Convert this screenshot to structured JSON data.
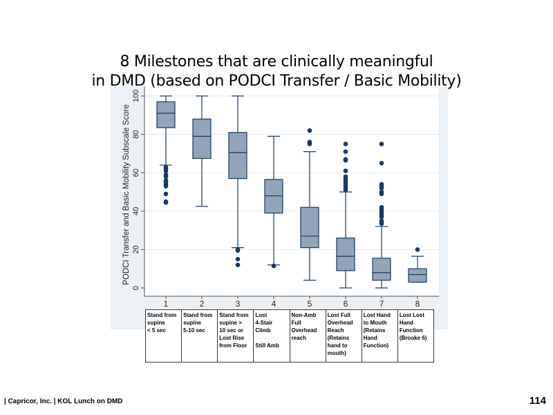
{
  "slide": {
    "title_line1": "8 Milestones that are clinically meaningful",
    "title_line2": "in DMD (based on PODCI Transfer / Basic Mobility)",
    "footer": "| Capricor, Inc. | KOL Lunch on DMD",
    "page_number": "114"
  },
  "milestones": [
    "Stand from\nsupine\n< 5 sec",
    "Stand from\nsupine\n5-10 sec",
    "Stand from\nsupine >\n10 sec or\nLost Rise\nfrom Floor",
    "Lost\n4-Stair\nClimb\n\nStill Amb",
    "Non-Amb\nFull\nOverhead\nreach",
    "Lost Full\nOverhead\nReach\n(Retains\nhand to\nmouth)",
    "Lost Hand\nto Mouth\n(Retains\nHand\nFunction)",
    "Lost Lost\nHand\nFunction\n(Brooke 6)"
  ],
  "colors": {
    "box": "#91a4b8",
    "line": "#1a3a5c",
    "dot": "#163a63",
    "panel": "#eaf0f3"
  },
  "chart_data": {
    "type": "box",
    "ylabel": "PODCI Transfer and Basic Mobility Subscale Score",
    "ylim": [
      0,
      100
    ],
    "yticks": [
      "0",
      "20",
      "40",
      "60",
      "80",
      "100"
    ],
    "categories": [
      "1",
      "2",
      "3",
      "4",
      "5",
      "6",
      "7",
      "8"
    ],
    "boxes": [
      {
        "whisker_low": 64,
        "q1": 83.5,
        "median": 91,
        "q3": 97,
        "whisker_high": 100,
        "outliers": [
          63,
          62,
          61,
          59,
          58,
          56,
          55,
          54,
          53,
          49,
          45,
          44.5
        ]
      },
      {
        "whisker_low": 42.5,
        "q1": 67.5,
        "median": 79,
        "q3": 88,
        "whisker_high": 100,
        "outliers": []
      },
      {
        "whisker_low": 21,
        "q1": 57,
        "median": 70.5,
        "q3": 81,
        "whisker_high": 100,
        "outliers": [
          20,
          19.5,
          15,
          12
        ]
      },
      {
        "whisker_low": 12,
        "q1": 39,
        "median": 48,
        "q3": 56.5,
        "whisker_high": 79,
        "outliers": [
          11.5
        ]
      },
      {
        "whisker_low": 4,
        "q1": 21,
        "median": 27,
        "q3": 42,
        "whisker_high": 71,
        "outliers": [
          82,
          76,
          75
        ]
      },
      {
        "whisker_low": 0,
        "q1": 9,
        "median": 16.5,
        "q3": 26,
        "whisker_high": 50,
        "outliers": [
          75,
          71,
          67,
          66.5,
          61,
          58,
          57,
          56,
          55,
          54,
          53,
          52,
          51
        ]
      },
      {
        "whisker_low": 0,
        "q1": 4,
        "median": 8,
        "q3": 15.5,
        "whisker_high": 32,
        "outliers": [
          75,
          65,
          54,
          53,
          52,
          50,
          49,
          42,
          41,
          40,
          39,
          38,
          37,
          35,
          34,
          33.5
        ]
      },
      {
        "whisker_low": 3,
        "q1": 3,
        "median": 7,
        "q3": 10,
        "whisker_high": 16.5,
        "outliers": [
          20
        ]
      }
    ]
  }
}
